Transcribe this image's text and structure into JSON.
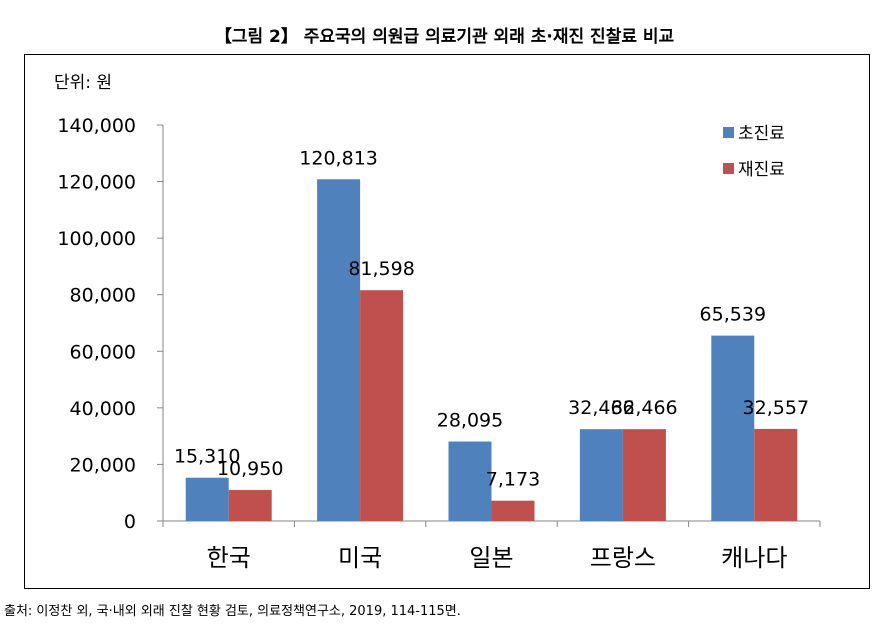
{
  "title": "【그림 2】 주요국의 의원급 의료기관 외래 초·재진 진찰료 비교",
  "unit_label": "단위: 원",
  "source": "출처: 이정찬 외, 국·내외 외래 진찰 현황 검토, 의료정책연구소, 2019, 114-115면.",
  "chart_data": {
    "type": "bar",
    "categories": [
      "한국",
      "미국",
      "일본",
      "프랑스",
      "캐나다"
    ],
    "series": [
      {
        "name": "초진료",
        "color": "#4f81bd",
        "values": [
          15310,
          120813,
          28095,
          32466,
          65539
        ]
      },
      {
        "name": "재진료",
        "color": "#c0504d",
        "values": [
          10950,
          81598,
          7173,
          32466,
          32557
        ]
      }
    ],
    "ylim": [
      0,
      140000
    ],
    "yticks": [
      0,
      20000,
      40000,
      60000,
      80000,
      100000,
      120000,
      140000
    ],
    "ytick_labels": [
      "0",
      "20,000",
      "40,000",
      "60,000",
      "80,000",
      "100,000",
      "120,000",
      "140,000"
    ],
    "data_labels": [
      [
        "15,310",
        "120,813",
        "28,095",
        "32,466",
        "65,539"
      ],
      [
        "10,950",
        "81,598",
        "7,173",
        "32,466",
        "32,557"
      ]
    ],
    "legend_position": "top-right",
    "grid": false
  }
}
